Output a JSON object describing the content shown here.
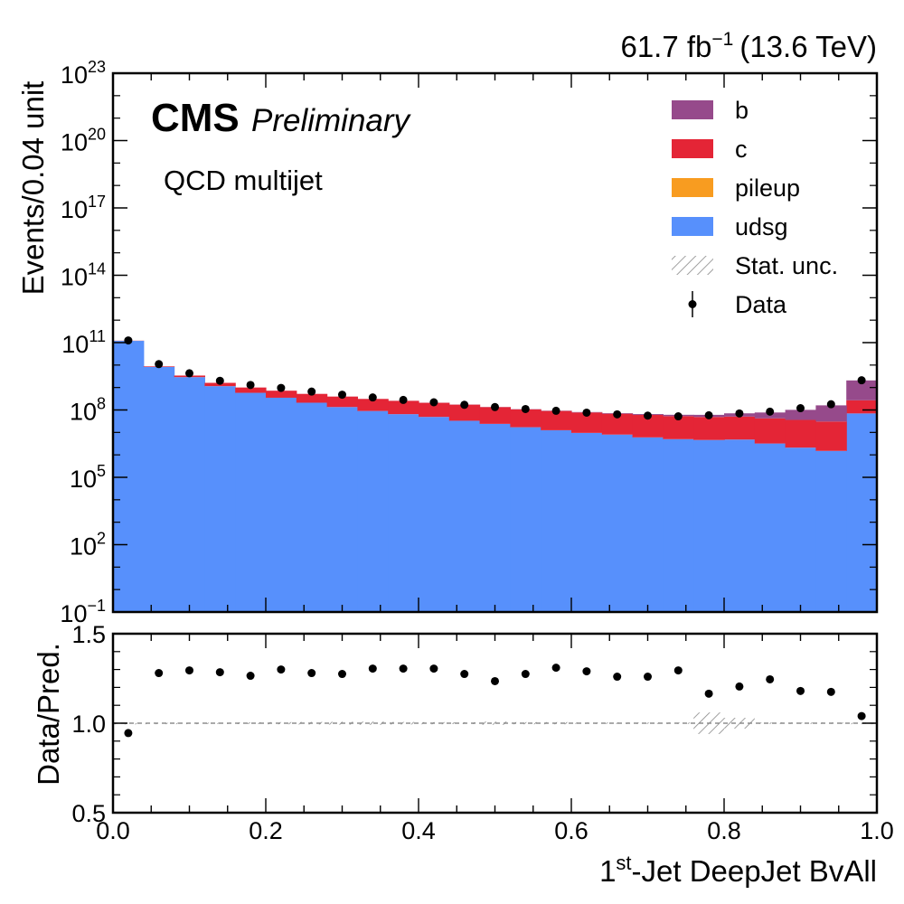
{
  "header": {
    "lumi_text": "61.7 fb",
    "lumi_exp": "−1",
    "energy_text": "(13.6 TeV)"
  },
  "labels": {
    "cms": "CMS",
    "preliminary": "Preliminary",
    "process": "QCD multijet",
    "ylabel_main": "Events/0.04 unit",
    "ylabel_ratio": "Data/Pred.",
    "xlabel_sup": "st",
    "xlabel_pre": "1",
    "xlabel_post": "-Jet DeepJet BvAll"
  },
  "legend": {
    "items": [
      {
        "label": "b",
        "kind": "fill",
        "color": "#964a8b"
      },
      {
        "label": "c",
        "kind": "fill",
        "color": "#e42536"
      },
      {
        "label": "pileup",
        "kind": "fill",
        "color": "#f89c20"
      },
      {
        "label": "udsg",
        "kind": "fill",
        "color": "#5790fc"
      },
      {
        "label": "Stat. unc.",
        "kind": "hatch",
        "color": "#888888"
      },
      {
        "label": "Data",
        "kind": "marker",
        "color": "#000000"
      }
    ]
  },
  "chart_data": [
    {
      "type": "bar",
      "stacked": true,
      "y_scale": "log",
      "ylabel": "Events/0.04 unit",
      "xlim": [
        0.0,
        1.0
      ],
      "ylim": [
        0.1,
        1e+23
      ],
      "y_ticks": [
        {
          "base": "10",
          "exp": "−1",
          "value": 0.1
        },
        {
          "base": "10",
          "exp": "2",
          "value": 100
        },
        {
          "base": "10",
          "exp": "5",
          "value": 100000.0
        },
        {
          "base": "10",
          "exp": "8",
          "value": 100000000.0
        },
        {
          "base": "10",
          "exp": "11",
          "value": 100000000000.0
        },
        {
          "base": "10",
          "exp": "14",
          "value": 100000000000000.0
        },
        {
          "base": "10",
          "exp": "17",
          "value": 1e+17
        },
        {
          "base": "10",
          "exp": "20",
          "value": 1e+20
        },
        {
          "base": "10",
          "exp": "23",
          "value": 1e+23
        }
      ],
      "bin_edges": [
        0.0,
        0.04,
        0.08,
        0.12,
        0.16,
        0.2,
        0.24,
        0.28,
        0.32,
        0.36,
        0.4,
        0.44,
        0.48,
        0.52,
        0.56,
        0.6,
        0.64,
        0.68,
        0.72,
        0.76,
        0.8,
        0.84,
        0.88,
        0.92,
        0.96,
        1.0
      ],
      "series": [
        {
          "name": "udsg",
          "color": "#5790fc",
          "values": [
            120000000000.0,
            8300000000.0,
            2900000000.0,
            1150000000.0,
            580000000.0,
            350000000.0,
            210000000.0,
            135000000.0,
            90000000.0,
            65000000.0,
            49000000.0,
            33000000.0,
            24000000.0,
            17000000.0,
            12500000.0,
            9500000.0,
            8000000.0,
            6000000.0,
            5000000.0,
            4600000.0,
            4800000.0,
            3200000.0,
            2100000.0,
            1500000.0,
            70000000.0
          ]
        },
        {
          "name": "pileup",
          "color": "#f89c20",
          "values": [
            200000000.0,
            20000000.0,
            8000000.0,
            3000000.0,
            1200000.0,
            600000.0,
            300000.0,
            180000.0,
            120000.0,
            80000.0,
            60000.0,
            40000.0,
            30000.0,
            22000.0,
            16000.0,
            12000.0,
            9000.0,
            7000.0,
            5500.0,
            4500.0,
            4000.0,
            3500.0,
            3000.0,
            2500.0,
            20000.0
          ]
        },
        {
          "name": "c",
          "color": "#e42536",
          "values": [
            2000000000.0,
            500000000.0,
            500000000.0,
            460000000.0,
            420000000.0,
            370000000.0,
            310000000.0,
            260000000.0,
            220000000.0,
            190000000.0,
            160000000.0,
            140000000.0,
            110000000.0,
            90000000.0,
            78000000.0,
            68000000.0,
            60000000.0,
            54000000.0,
            48000000.0,
            44000000.0,
            46000000.0,
            39000000.0,
            34000000.0,
            29000000.0,
            200000000.0
          ]
        },
        {
          "name": "b",
          "color": "#964a8b",
          "values": [
            50000000.0,
            10000000.0,
            4000000.0,
            3000000.0,
            2500000.0,
            2000000.0,
            1800000.0,
            1600000.0,
            1500000.0,
            1500000.0,
            1600000.0,
            1700000.0,
            1900000.0,
            2200000.0,
            2600000.0,
            3200000.0,
            4000000.0,
            5500000.0,
            8000000.0,
            12000000.0,
            20000000.0,
            35000000.0,
            65000000.0,
            130000000.0,
            1800000000.0
          ]
        }
      ],
      "data": {
        "name": "Data",
        "x": [
          0.02,
          0.06,
          0.1,
          0.14,
          0.18,
          0.22,
          0.26,
          0.3,
          0.34,
          0.38,
          0.42,
          0.46,
          0.5,
          0.54,
          0.58,
          0.62,
          0.66,
          0.7,
          0.74,
          0.78,
          0.82,
          0.86,
          0.9,
          0.94,
          0.98
        ],
        "y": [
          125000000000.0,
          11000000000.0,
          4300000000.0,
          2000000000.0,
          1300000000.0,
          960000000.0,
          660000000.0,
          480000000.0,
          360000000.0,
          280000000.0,
          220000000.0,
          170000000.0,
          135000000.0,
          110000000.0,
          92000000.0,
          76000000.0,
          64000000.0,
          56000000.0,
          52000000.0,
          58000000.0,
          70000000.0,
          84000000.0,
          120000000.0,
          180000000.0,
          2100000000.0
        ]
      }
    },
    {
      "type": "scatter",
      "ylabel": "Data/Pred.",
      "xlabel": "1st-Jet DeepJet BvAll",
      "xlim": [
        0.0,
        1.0
      ],
      "ylim": [
        0.5,
        1.5
      ],
      "x_ticks": [
        "0.0",
        "0.2",
        "0.4",
        "0.6",
        "0.8",
        "1.0"
      ],
      "y_ticks": [
        "0.5",
        "1.0",
        "1.5"
      ],
      "reference_line": 1.0,
      "x": [
        0.02,
        0.06,
        0.1,
        0.14,
        0.18,
        0.22,
        0.26,
        0.3,
        0.34,
        0.38,
        0.42,
        0.46,
        0.5,
        0.54,
        0.58,
        0.62,
        0.66,
        0.7,
        0.74,
        0.78,
        0.82,
        0.86,
        0.9,
        0.94,
        0.98
      ],
      "y": [
        0.945,
        1.28,
        1.295,
        1.285,
        1.265,
        1.3,
        1.28,
        1.275,
        1.305,
        1.305,
        1.305,
        1.275,
        1.235,
        1.275,
        1.31,
        1.29,
        1.26,
        1.26,
        1.295,
        1.165,
        1.205,
        1.245,
        1.18,
        1.175,
        1.04
      ],
      "stat_unc": [
        0.001,
        0.002,
        0.002,
        0.003,
        0.005,
        0.006,
        0.007,
        0.008,
        0.009,
        0.007,
        0.006,
        0.005,
        0.009,
        0.006,
        0.006,
        0.004,
        0.004,
        0.004,
        0.004,
        0.06,
        0.03,
        0.004,
        0.004,
        0.004,
        0.002
      ]
    }
  ]
}
